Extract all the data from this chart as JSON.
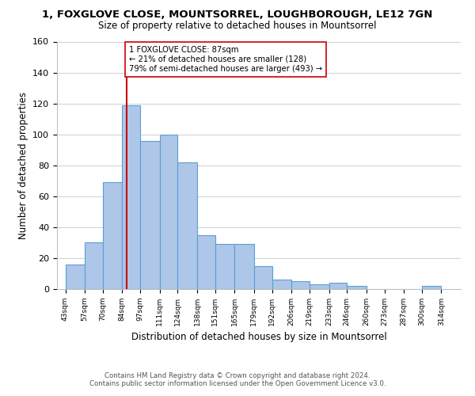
{
  "title_line1": "1, FOXGLOVE CLOSE, MOUNTSORREL, LOUGHBOROUGH, LE12 7GN",
  "title_line2": "Size of property relative to detached houses in Mountsorrel",
  "xlabel": "Distribution of detached houses by size in Mountsorrel",
  "ylabel": "Number of detached properties",
  "footer_line1": "Contains HM Land Registry data © Crown copyright and database right 2024.",
  "footer_line2": "Contains public sector information licensed under the Open Government Licence v3.0.",
  "annotation_line1": "1 FOXGLOVE CLOSE: 87sqm",
  "annotation_line2": "← 21% of detached houses are smaller (128)",
  "annotation_line3": "79% of semi-detached houses are larger (493) →",
  "bar_left_edges": [
    43,
    57,
    70,
    84,
    97,
    111,
    124,
    138,
    151,
    165,
    179,
    192,
    206,
    219,
    233,
    246,
    260,
    273,
    287,
    300
  ],
  "bar_widths": [
    14,
    13,
    14,
    13,
    14,
    13,
    14,
    13,
    14,
    14,
    13,
    14,
    13,
    14,
    13,
    14,
    13,
    14,
    13,
    14
  ],
  "bar_heights": [
    16,
    30,
    69,
    119,
    96,
    100,
    82,
    35,
    29,
    29,
    15,
    6,
    5,
    3,
    4,
    2,
    0,
    0,
    0,
    2
  ],
  "tick_labels": [
    "43sqm",
    "57sqm",
    "70sqm",
    "84sqm",
    "97sqm",
    "111sqm",
    "124sqm",
    "138sqm",
    "151sqm",
    "165sqm",
    "179sqm",
    "192sqm",
    "206sqm",
    "219sqm",
    "233sqm",
    "246sqm",
    "260sqm",
    "273sqm",
    "287sqm",
    "300sqm",
    "314sqm"
  ],
  "tick_positions": [
    43,
    57,
    70,
    84,
    97,
    111,
    124,
    138,
    151,
    165,
    179,
    192,
    206,
    219,
    233,
    246,
    260,
    273,
    287,
    300,
    314
  ],
  "bar_color": "#aec6e8",
  "bar_edge_color": "#5a9fd4",
  "vline_x": 87,
  "vline_color": "#cc0000",
  "annotation_box_edge_color": "#cc0000",
  "annotation_box_face_color": "#ffffff",
  "ylim": [
    0,
    160
  ],
  "yticks": [
    0,
    20,
    40,
    60,
    80,
    100,
    120,
    140,
    160
  ],
  "bg_color": "#ffffff",
  "grid_color": "#d0d0d0"
}
